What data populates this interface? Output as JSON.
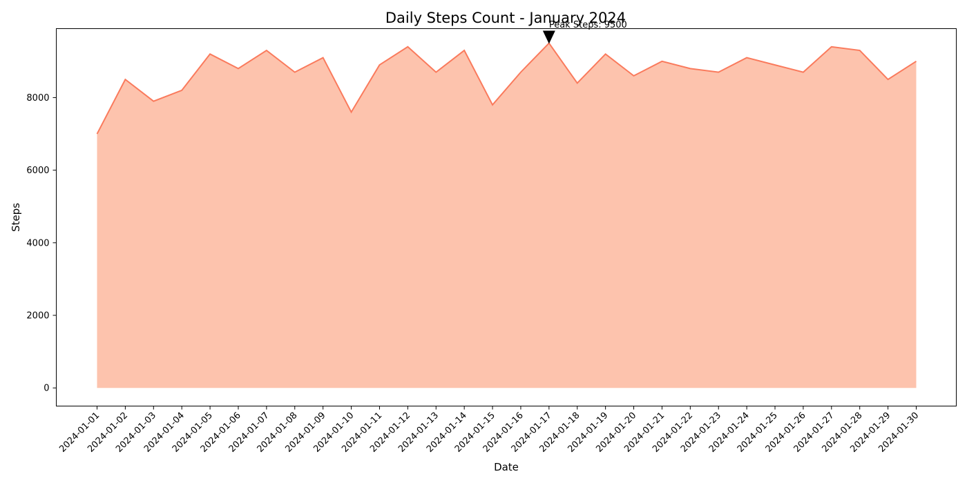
{
  "chart_data": {
    "type": "area",
    "title": "Daily Steps Count - January 2024",
    "xlabel": "Date",
    "ylabel": "Steps",
    "ylim": [
      -500,
      9900
    ],
    "yticks": [
      0,
      2000,
      4000,
      6000,
      8000
    ],
    "grid": false,
    "colors": {
      "fill": "#fdc3ad",
      "line": "#fa7a5c"
    },
    "x": [
      "2024-01-01",
      "2024-01-02",
      "2024-01-03",
      "2024-01-04",
      "2024-01-05",
      "2024-01-06",
      "2024-01-07",
      "2024-01-08",
      "2024-01-09",
      "2024-01-10",
      "2024-01-11",
      "2024-01-12",
      "2024-01-13",
      "2024-01-14",
      "2024-01-15",
      "2024-01-16",
      "2024-01-17",
      "2024-01-18",
      "2024-01-19",
      "2024-01-20",
      "2024-01-21",
      "2024-01-22",
      "2024-01-23",
      "2024-01-24",
      "2024-01-25",
      "2024-01-26",
      "2024-01-27",
      "2024-01-28",
      "2024-01-29",
      "2024-01-30"
    ],
    "values": [
      7000,
      8500,
      7900,
      8200,
      9200,
      8800,
      9300,
      8700,
      9100,
      7600,
      8900,
      9400,
      8700,
      9300,
      7800,
      8700,
      9500,
      8400,
      9200,
      8600,
      9000,
      8800,
      8700,
      9100,
      8900,
      8700,
      9400,
      9300,
      8500,
      9000
    ],
    "annotation": {
      "text": "Peak Steps: 9500",
      "x": "2024-01-17",
      "y": 9500
    }
  }
}
